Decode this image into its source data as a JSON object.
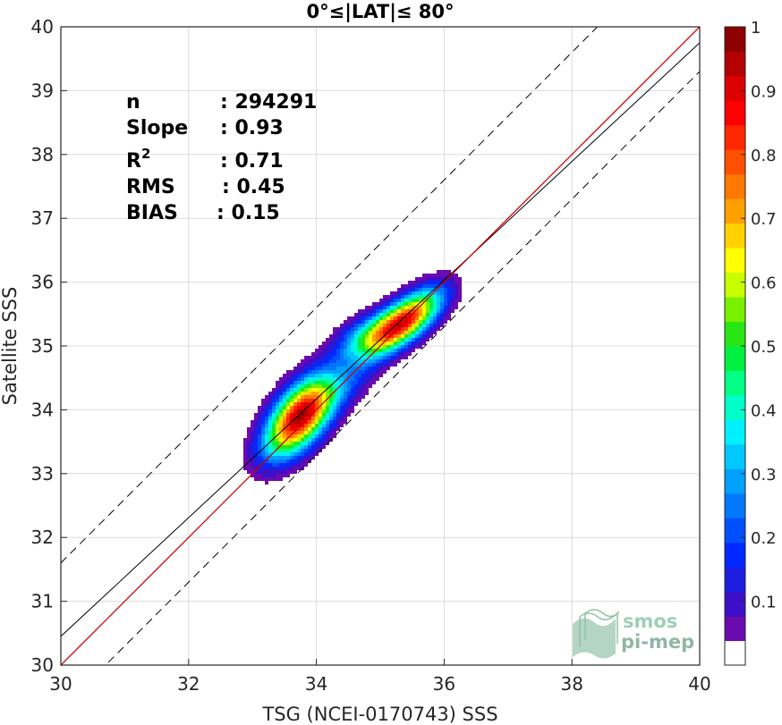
{
  "chart_data": {
    "type": "density-scatter",
    "title": "0°≤|LAT|≤ 80°",
    "xlabel": "TSG (NCEI-0170743) SSS",
    "ylabel": "Satellite SSS",
    "xlim": [
      30,
      40
    ],
    "ylim": [
      30,
      40
    ],
    "xticks": [
      "30",
      "32",
      "34",
      "36",
      "38",
      "40"
    ],
    "yticks": [
      "30",
      "31",
      "32",
      "33",
      "34",
      "35",
      "36",
      "37",
      "38",
      "39",
      "40"
    ],
    "grid": true,
    "stats": [
      {
        "label": "n",
        "value": ": 294291"
      },
      {
        "label": "Slope",
        "value": ": 0.93"
      },
      {
        "label": "R",
        "sup": "2",
        "value": ": 0.71"
      },
      {
        "label": "RMS",
        "value": ": 0.45"
      },
      {
        "label": "BIAS",
        "value": ": 0.15"
      }
    ],
    "lines": {
      "identity": {
        "slope": 1,
        "intercept": 0,
        "color": "#cc0000"
      },
      "fit": {
        "slope": 0.93,
        "intercept": 2.55,
        "color": "#000000"
      },
      "bounds": [
        {
          "slope": 1,
          "intercept": 1.6,
          "style": "dashed"
        },
        {
          "slope": 1,
          "intercept": -0.7,
          "style": "dashed"
        }
      ]
    },
    "density_peaks": [
      {
        "x": 33.75,
        "y": 33.9,
        "peak": 1.0
      },
      {
        "x": 35.45,
        "y": 35.45,
        "peak": 0.8
      },
      {
        "x": 34.8,
        "y": 35.1,
        "peak": 0.5
      }
    ],
    "colorbar": {
      "range": [
        0,
        1
      ],
      "ticks": [
        "0.1",
        "0.2",
        "0.3",
        "0.4",
        "0.5",
        "0.6",
        "0.7",
        "0.8",
        "0.9",
        "1"
      ],
      "colors": [
        "#ffffff",
        "#6a0aaf",
        "#3d0fc8",
        "#1e1ee0",
        "#0028ff",
        "#0050ff",
        "#0078ff",
        "#00a0ff",
        "#00c8ff",
        "#00f0ff",
        "#00ffc8",
        "#00ff82",
        "#00f040",
        "#28e614",
        "#78f000",
        "#c8ff00",
        "#ffff00",
        "#ffd200",
        "#ffa000",
        "#ff7800",
        "#ff5000",
        "#ff2800",
        "#ff0000",
        "#dc0000",
        "#b40000",
        "#8c0000"
      ]
    },
    "watermark": {
      "line1": "smos",
      "line2": "pi-mep"
    }
  }
}
